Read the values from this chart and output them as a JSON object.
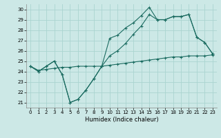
{
  "xlabel": "Humidex (Indice chaleur)",
  "bg_color": "#cce8e6",
  "line_color": "#1a6b60",
  "grid_color": "#aad4d0",
  "xlim": [
    -0.5,
    23.5
  ],
  "ylim": [
    20.5,
    30.5
  ],
  "xticks": [
    0,
    1,
    2,
    3,
    4,
    5,
    6,
    7,
    8,
    9,
    10,
    11,
    12,
    13,
    14,
    15,
    16,
    17,
    18,
    19,
    20,
    21,
    22,
    23
  ],
  "yticks": [
    21,
    22,
    23,
    24,
    25,
    26,
    27,
    28,
    29,
    30
  ],
  "curve_upper_x": [
    0,
    1,
    2,
    3,
    4,
    5,
    6,
    7,
    8,
    9,
    10,
    11,
    12,
    13,
    14,
    15,
    16,
    17,
    18,
    19,
    20,
    21,
    22,
    23
  ],
  "curve_upper_y": [
    24.5,
    24.0,
    24.5,
    25.0,
    23.7,
    21.0,
    21.3,
    22.2,
    23.3,
    24.5,
    27.2,
    27.5,
    28.2,
    28.7,
    29.4,
    30.2,
    29.0,
    29.0,
    29.3,
    29.3,
    29.5,
    27.3,
    26.8,
    25.7
  ],
  "curve_mid_x": [
    0,
    1,
    2,
    3,
    4,
    5,
    6,
    7,
    8,
    9,
    10,
    11,
    12,
    13,
    14,
    15,
    16,
    17,
    18,
    19,
    20,
    21,
    22,
    23
  ],
  "curve_mid_y": [
    24.5,
    24.0,
    24.5,
    25.0,
    23.7,
    21.0,
    21.3,
    22.2,
    23.3,
    24.5,
    25.5,
    26.0,
    26.7,
    27.6,
    28.4,
    29.5,
    29.0,
    29.0,
    29.3,
    29.3,
    29.5,
    27.3,
    26.8,
    25.7
  ],
  "curve_flat_x": [
    0,
    1,
    2,
    3,
    4,
    5,
    6,
    7,
    8,
    9,
    10,
    11,
    12,
    13,
    14,
    15,
    16,
    17,
    18,
    19,
    20,
    21,
    22,
    23
  ],
  "curve_flat_y": [
    24.5,
    24.1,
    24.2,
    24.3,
    24.4,
    24.4,
    24.5,
    24.5,
    24.5,
    24.5,
    24.6,
    24.7,
    24.8,
    24.9,
    25.0,
    25.1,
    25.2,
    25.3,
    25.4,
    25.4,
    25.5,
    25.5,
    25.5,
    25.6
  ]
}
